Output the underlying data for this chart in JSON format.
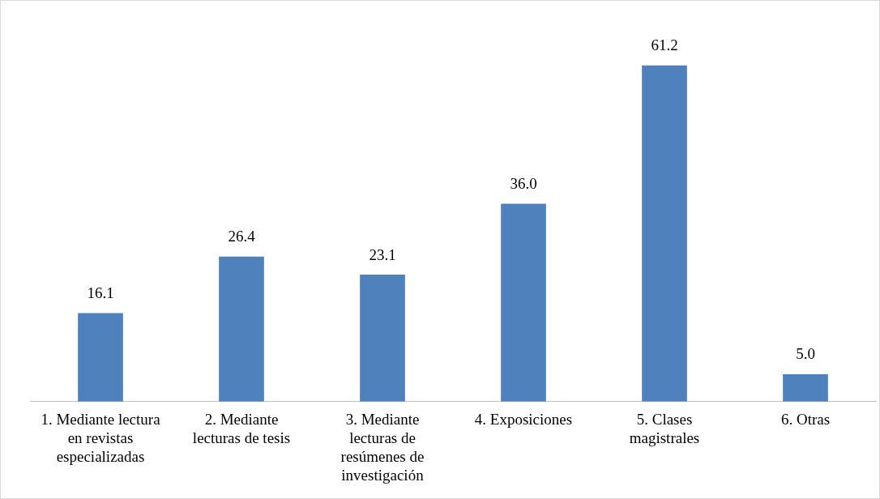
{
  "chart_data": {
    "type": "bar",
    "categories": [
      "1. Mediante lectura en revistas especializadas",
      "2. Mediante lecturas de tesis",
      "3. Mediante lecturas de resúmenes de investigación",
      "4. Exposiciones",
      "5. Clases magistrales",
      "6. Otras"
    ],
    "values": [
      16.1,
      26.4,
      23.1,
      36.0,
      61.2,
      5.0
    ],
    "value_labels": [
      "16.1",
      "26.4",
      "23.1",
      "36.0",
      "61.2",
      "5.0"
    ],
    "color": "#4f81bd",
    "grid": false,
    "legend": false
  }
}
